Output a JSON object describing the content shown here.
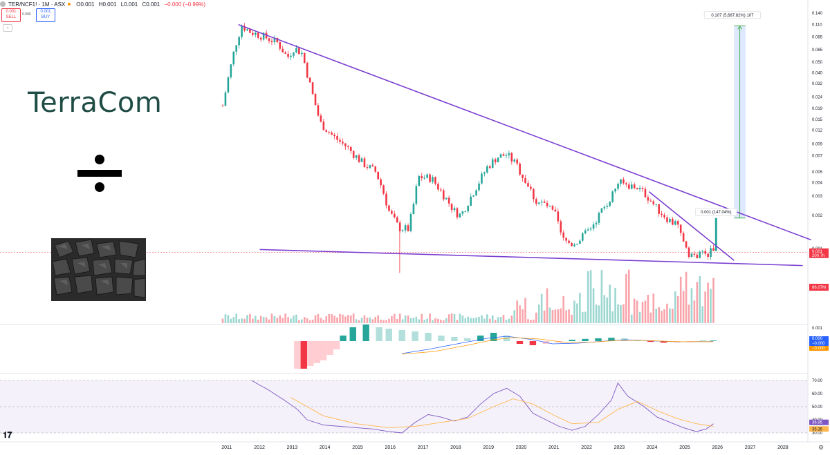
{
  "header": {
    "symbol": "TER/NCF1! · 1M · ASX",
    "open": "O0.001",
    "high": "H0.001",
    "low": "L0.001",
    "close": "C0.001",
    "change": "−0.000 (−0.99%)",
    "sell_price": "0.001",
    "sell_label": "SELL",
    "spread": "0.000",
    "buy_price": "0.001",
    "buy_label": "BUY"
  },
  "overlay": {
    "logo_text": "TerraCom",
    "divide_icon": "divide-icon",
    "image_subject": "coal"
  },
  "colors": {
    "up": "#26a69a",
    "down": "#f23645",
    "trendline": "#7b3fd1",
    "projection_fill": "#d6e4ff",
    "projection_arrow": "#4caf50",
    "macd_line": "#2962ff",
    "signal_line": "#ff9800",
    "rsi_line": "#7e57c2",
    "rsi_ma": "#ffb74d",
    "rsi_band": "#ede7f6"
  },
  "chart_data": {
    "type": "candlestick",
    "scale": "log",
    "x_axis_years": [
      "2011",
      "2012",
      "2013",
      "2014",
      "2015",
      "2016",
      "2017",
      "2018",
      "2019",
      "2020",
      "2021",
      "2022",
      "2023",
      "2024",
      "2025",
      "2026",
      "2027",
      "2028"
    ],
    "price_ticks": [
      "0.140",
      "0.110",
      "0.085",
      "0.065",
      "0.050",
      "0.040",
      "0.032",
      "0.024",
      "0.019",
      "0.015",
      "0.012",
      "0.009",
      "0.007",
      "0.005",
      "0.004",
      "0.003",
      "0.002",
      "0.001"
    ],
    "price_path": [
      [
        2010.92,
        0.02
      ],
      [
        2011.08,
        0.035
      ],
      [
        2011.3,
        0.07
      ],
      [
        2011.5,
        0.108
      ],
      [
        2011.75,
        0.095
      ],
      [
        2012.2,
        0.085
      ],
      [
        2012.6,
        0.075
      ],
      [
        2012.9,
        0.055
      ],
      [
        2013.1,
        0.068
      ],
      [
        2013.35,
        0.06
      ],
      [
        2013.6,
        0.03
      ],
      [
        2013.9,
        0.014
      ],
      [
        2014.3,
        0.0105
      ],
      [
        2014.7,
        0.0085
      ],
      [
        2015.2,
        0.006
      ],
      [
        2015.6,
        0.005
      ],
      [
        2015.8,
        0.0035
      ],
      [
        2016.0,
        0.0022
      ],
      [
        2016.3,
        0.00155
      ],
      [
        2016.6,
        0.0015
      ],
      [
        2016.75,
        0.0025
      ],
      [
        2016.9,
        0.0045
      ],
      [
        2017.3,
        0.0044
      ],
      [
        2017.7,
        0.003
      ],
      [
        2018.0,
        0.0022
      ],
      [
        2018.2,
        0.002
      ],
      [
        2018.4,
        0.0026
      ],
      [
        2018.7,
        0.0038
      ],
      [
        2019.0,
        0.0055
      ],
      [
        2019.3,
        0.0068
      ],
      [
        2019.6,
        0.0072
      ],
      [
        2019.9,
        0.0058
      ],
      [
        2020.2,
        0.004
      ],
      [
        2020.5,
        0.0027
      ],
      [
        2020.8,
        0.0025
      ],
      [
        2021.1,
        0.002
      ],
      [
        2021.3,
        0.0012
      ],
      [
        2021.6,
        0.0011
      ],
      [
        2021.9,
        0.00125
      ],
      [
        2022.2,
        0.0016
      ],
      [
        2022.5,
        0.0022
      ],
      [
        2022.8,
        0.003
      ],
      [
        2023.0,
        0.004
      ],
      [
        2023.3,
        0.0038
      ],
      [
        2023.6,
        0.0036
      ],
      [
        2023.9,
        0.003
      ],
      [
        2024.2,
        0.0023
      ],
      [
        2024.5,
        0.0019
      ],
      [
        2024.8,
        0.0016
      ],
      [
        2025.0,
        0.0012
      ],
      [
        2025.2,
        0.00088
      ],
      [
        2025.4,
        0.00085
      ],
      [
        2025.6,
        0.0009
      ],
      [
        2025.75,
        0.00092
      ],
      [
        2025.92,
        0.00095
      ]
    ],
    "spike_low": [
      2016.33,
      0.0006
    ],
    "projection_candle": [
      2026.0,
      0.00095,
      0.0019
    ],
    "trendlines": [
      {
        "name": "upper",
        "points": [
          [
            2011.4,
            0.11
          ],
          [
            2028.9,
            0.0012
          ]
        ]
      },
      {
        "name": "lower",
        "points": [
          [
            2012.05,
            0.00098
          ],
          [
            2028.65,
            0.0007
          ]
        ]
      },
      {
        "name": "steep",
        "points": [
          [
            2023.95,
            0.0033
          ],
          [
            2026.55,
            0.00078
          ]
        ]
      }
    ],
    "annotations": [
      {
        "text": "0.001 (147.04%)",
        "x": 2026.0,
        "y": 0.002
      },
      {
        "text": "0.107 (5,687.82%) 107",
        "x": 2026.5,
        "y": 0.125
      }
    ],
    "projection": {
      "x_start": 2026.55,
      "x_end": 2026.9,
      "y_from": 0.0019,
      "y_to": 0.107
    },
    "current_price": {
      "label": "0.001",
      "sub": "200 7h",
      "value": 0.00092
    },
    "volume_label": "86.07M",
    "macd": {
      "label_top": "0.001",
      "labels": [
        "0.000",
        "−0.000",
        "−0.000"
      ],
      "hist": [
        [
          2013.2,
          -1
        ],
        [
          2013.4,
          -1
        ],
        [
          2013.6,
          -0.9
        ],
        [
          2013.8,
          -0.8
        ],
        [
          2014.0,
          -0.7
        ],
        [
          2014.2,
          -0.5
        ],
        [
          2014.4,
          -0.3
        ],
        [
          2014.6,
          0.2
        ],
        [
          2014.9,
          0.5
        ],
        [
          2015.3,
          0.6
        ],
        [
          2015.7,
          0.5
        ],
        [
          2016.0,
          0.45
        ],
        [
          2016.4,
          0.4
        ],
        [
          2016.8,
          0.35
        ],
        [
          2017.2,
          0.3
        ],
        [
          2017.6,
          0.2
        ],
        [
          2018.0,
          0.15
        ],
        [
          2018.4,
          0.1
        ],
        [
          2018.8,
          0.2
        ],
        [
          2019.2,
          0.3
        ],
        [
          2019.6,
          0.2
        ],
        [
          2020.0,
          -0.1
        ],
        [
          2020.4,
          -0.15
        ],
        [
          2020.8,
          -0.1
        ],
        [
          2021.2,
          -0.05
        ],
        [
          2021.6,
          0.05
        ],
        [
          2022.0,
          0.08
        ],
        [
          2022.4,
          0.1
        ],
        [
          2022.8,
          0.12
        ],
        [
          2023.2,
          0.1
        ],
        [
          2023.6,
          0.05
        ],
        [
          2024.0,
          -0.03
        ],
        [
          2024.4,
          -0.06
        ],
        [
          2024.8,
          -0.05
        ],
        [
          2025.2,
          -0.03
        ],
        [
          2025.6,
          0.01
        ],
        [
          2025.92,
          0.02
        ]
      ],
      "macd_line": [
        [
          2016.4,
          -0.9
        ],
        [
          2017.2,
          -0.6
        ],
        [
          2018.2,
          -0.15
        ],
        [
          2019.0,
          0.2
        ],
        [
          2019.6,
          0.35
        ],
        [
          2020.4,
          0.1
        ],
        [
          2021.0,
          -0.2
        ],
        [
          2021.8,
          -0.15
        ],
        [
          2022.6,
          0.0
        ],
        [
          2023.2,
          0.1
        ],
        [
          2024.0,
          0.02
        ],
        [
          2024.8,
          -0.05
        ],
        [
          2025.92,
          -0.03
        ]
      ],
      "signal_line": [
        [
          2016.4,
          -0.95
        ],
        [
          2017.4,
          -0.75
        ],
        [
          2018.4,
          -0.3
        ],
        [
          2019.2,
          0.1
        ],
        [
          2019.8,
          0.25
        ],
        [
          2020.6,
          0.15
        ],
        [
          2021.4,
          -0.1
        ],
        [
          2022.2,
          -0.08
        ],
        [
          2023.0,
          0.05
        ],
        [
          2023.8,
          0.05
        ],
        [
          2024.8,
          -0.04
        ],
        [
          2025.92,
          -0.05
        ]
      ]
    },
    "rsi": {
      "ticks": [
        "70.00",
        "60.00",
        "50.00",
        "40.00",
        "30.00"
      ],
      "value_label": "36.95",
      "ma_label": "35.35",
      "values": [
        [
          2011.8,
          70
        ],
        [
          2012.3,
          63
        ],
        [
          2012.8,
          55
        ],
        [
          2013.2,
          48
        ],
        [
          2013.5,
          40
        ],
        [
          2014.0,
          36
        ],
        [
          2014.5,
          35
        ],
        [
          2015.0,
          34
        ],
        [
          2015.5,
          33
        ],
        [
          2016.0,
          31
        ],
        [
          2016.4,
          30
        ],
        [
          2016.8,
          38
        ],
        [
          2017.2,
          44
        ],
        [
          2017.6,
          42
        ],
        [
          2018.0,
          39
        ],
        [
          2018.4,
          42
        ],
        [
          2018.8,
          52
        ],
        [
          2019.2,
          60
        ],
        [
          2019.6,
          64
        ],
        [
          2020.0,
          58
        ],
        [
          2020.4,
          45
        ],
        [
          2020.8,
          40
        ],
        [
          2021.2,
          35
        ],
        [
          2021.6,
          32
        ],
        [
          2022.0,
          35
        ],
        [
          2022.4,
          44
        ],
        [
          2022.8,
          55
        ],
        [
          2023.0,
          68
        ],
        [
          2023.3,
          58
        ],
        [
          2023.8,
          50
        ],
        [
          2024.2,
          42
        ],
        [
          2024.6,
          38
        ],
        [
          2025.0,
          34
        ],
        [
          2025.4,
          31
        ],
        [
          2025.7,
          33
        ],
        [
          2025.92,
          37
        ]
      ],
      "ma": [
        [
          2013.0,
          57
        ],
        [
          2013.5,
          50
        ],
        [
          2014.0,
          43
        ],
        [
          2015.0,
          37
        ],
        [
          2016.0,
          34
        ],
        [
          2016.8,
          35
        ],
        [
          2017.6,
          38
        ],
        [
          2018.4,
          41
        ],
        [
          2019.2,
          50
        ],
        [
          2019.8,
          56
        ],
        [
          2020.4,
          52
        ],
        [
          2021.0,
          44
        ],
        [
          2021.6,
          37
        ],
        [
          2022.4,
          38
        ],
        [
          2023.0,
          48
        ],
        [
          2023.6,
          54
        ],
        [
          2024.2,
          47
        ],
        [
          2024.8,
          41
        ],
        [
          2025.4,
          37
        ],
        [
          2025.92,
          35
        ]
      ]
    }
  }
}
